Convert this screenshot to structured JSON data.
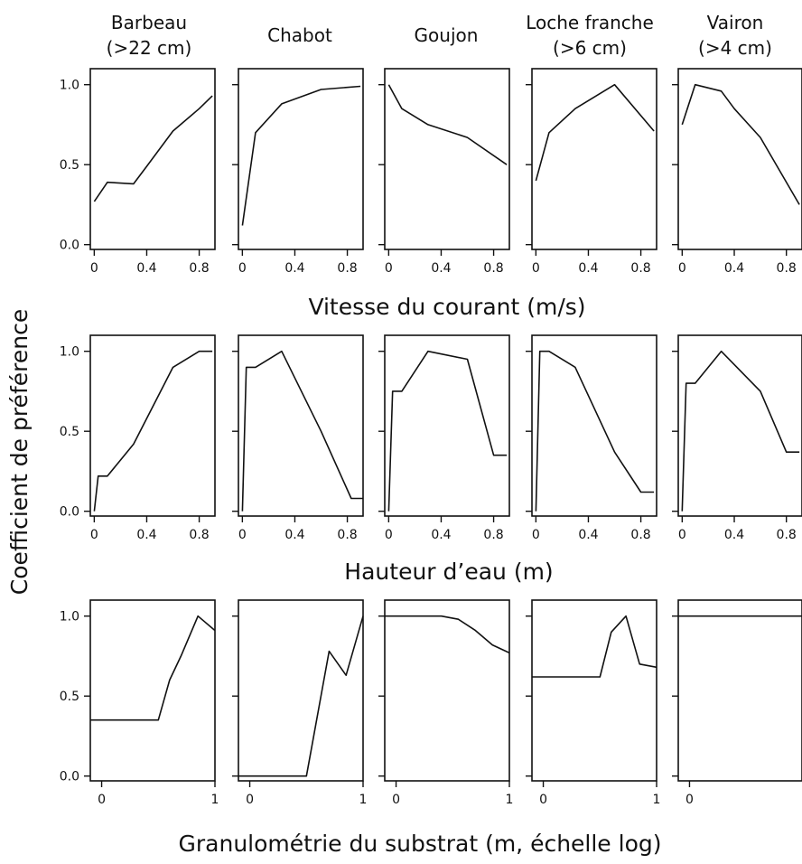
{
  "species": [
    {
      "line1": "Barbeau",
      "line2": "(>22 cm)"
    },
    {
      "line1": "Chabot",
      "line2": ""
    },
    {
      "line1": "Goujon",
      "line2": ""
    },
    {
      "line1": "Loche franche",
      "line2": "(>6 cm)"
    },
    {
      "line1": "Vairon",
      "line2": "(>4 cm)"
    }
  ],
  "ylabel": "Coefficient de préférence",
  "rows": [
    {
      "xlabel": "Vitesse du courant (m/s)",
      "xticks": [
        "0",
        "0.4",
        "0.8"
      ],
      "yticks": [
        "0.0",
        "0.5",
        "1.0"
      ]
    },
    {
      "xlabel": "Hauteur d’eau (m)",
      "xticks": [
        "0",
        "0.4",
        "0.8"
      ],
      "yticks": [
        "0.0",
        "0.5",
        "1.0"
      ]
    },
    {
      "xlabel": "Granulométrie du substrat (m, échelle log)",
      "xticks": [
        "0",
        "1"
      ],
      "yticks": [
        "0.0",
        "0.5",
        "1.0"
      ]
    }
  ],
  "chart_data": [
    {
      "type": "line",
      "panel": "Vitesse du courant / Barbeau (>22 cm)",
      "xlim": [
        -0.03,
        0.92
      ],
      "ylim": [
        -0.03,
        1.1
      ],
      "x": [
        0,
        0.1,
        0.3,
        0.4,
        0.6,
        0.8,
        0.9
      ],
      "y": [
        0.27,
        0.39,
        0.38,
        0.49,
        0.71,
        0.85,
        0.93
      ]
    },
    {
      "type": "line",
      "panel": "Vitesse du courant / Chabot",
      "xlim": [
        -0.03,
        0.92
      ],
      "ylim": [
        -0.03,
        1.1
      ],
      "x": [
        0,
        0.1,
        0.3,
        0.6,
        0.9
      ],
      "y": [
        0.12,
        0.7,
        0.88,
        0.97,
        0.99
      ]
    },
    {
      "type": "line",
      "panel": "Vitesse du courant / Goujon",
      "xlim": [
        -0.03,
        0.92
      ],
      "ylim": [
        -0.03,
        1.1
      ],
      "x": [
        0,
        0.1,
        0.3,
        0.6,
        0.9
      ],
      "y": [
        1.0,
        0.85,
        0.75,
        0.67,
        0.5
      ]
    },
    {
      "type": "line",
      "panel": "Vitesse du courant / Loche franche (>6 cm)",
      "xlim": [
        -0.03,
        0.92
      ],
      "ylim": [
        -0.03,
        1.1
      ],
      "x": [
        0,
        0.1,
        0.3,
        0.6,
        0.9
      ],
      "y": [
        0.4,
        0.7,
        0.85,
        1.0,
        0.71
      ]
    },
    {
      "type": "line",
      "panel": "Vitesse du courant / Vairon (>4 cm)",
      "xlim": [
        -0.03,
        0.92
      ],
      "ylim": [
        -0.03,
        1.1
      ],
      "x": [
        0,
        0.1,
        0.3,
        0.4,
        0.6,
        0.9
      ],
      "y": [
        0.75,
        1.0,
        0.96,
        0.85,
        0.67,
        0.25
      ]
    },
    {
      "type": "line",
      "panel": "Hauteur d’eau / Barbeau (>22 cm)",
      "xlim": [
        -0.03,
        0.92
      ],
      "ylim": [
        -0.03,
        1.1
      ],
      "x": [
        0,
        0.03,
        0.1,
        0.3,
        0.6,
        0.8,
        0.9
      ],
      "y": [
        0.0,
        0.22,
        0.22,
        0.42,
        0.9,
        1.0,
        1.0
      ]
    },
    {
      "type": "line",
      "panel": "Hauteur d’eau / Chabot",
      "xlim": [
        -0.03,
        0.92
      ],
      "ylim": [
        -0.03,
        1.1
      ],
      "x": [
        0,
        0.03,
        0.1,
        0.3,
        0.6,
        0.83,
        0.92
      ],
      "y": [
        0.0,
        0.9,
        0.9,
        1.0,
        0.5,
        0.08,
        0.08
      ]
    },
    {
      "type": "line",
      "panel": "Hauteur d’eau / Goujon",
      "xlim": [
        -0.03,
        0.92
      ],
      "ylim": [
        -0.03,
        1.1
      ],
      "x": [
        0,
        0.03,
        0.1,
        0.3,
        0.6,
        0.8,
        0.9
      ],
      "y": [
        0.0,
        0.75,
        0.75,
        1.0,
        0.95,
        0.35,
        0.35
      ]
    },
    {
      "type": "line",
      "panel": "Hauteur d’eau / Loche franche (>6 cm)",
      "xlim": [
        -0.03,
        0.92
      ],
      "ylim": [
        -0.03,
        1.1
      ],
      "x": [
        0,
        0.03,
        0.1,
        0.3,
        0.6,
        0.8,
        0.9
      ],
      "y": [
        0.0,
        1.0,
        1.0,
        0.9,
        0.37,
        0.12,
        0.12
      ]
    },
    {
      "type": "line",
      "panel": "Hauteur d’eau / Vairon (>4 cm)",
      "xlim": [
        -0.03,
        0.92
      ],
      "ylim": [
        -0.03,
        1.1
      ],
      "x": [
        0,
        0.03,
        0.1,
        0.3,
        0.6,
        0.8,
        0.9
      ],
      "y": [
        0.0,
        0.8,
        0.8,
        1.0,
        0.75,
        0.37,
        0.37
      ]
    },
    {
      "type": "line",
      "panel": "Granulométrie du substrat / Barbeau (>22 cm)",
      "xlim": [
        -0.1,
        1.0
      ],
      "ylim": [
        -0.03,
        1.1
      ],
      "x": [
        -0.1,
        0.5,
        0.6,
        0.7,
        0.85,
        1.0
      ],
      "y": [
        0.35,
        0.35,
        0.6,
        0.75,
        1.0,
        0.91
      ]
    },
    {
      "type": "line",
      "panel": "Granulométrie du substrat / Chabot",
      "xlim": [
        -0.1,
        1.0
      ],
      "ylim": [
        -0.03,
        1.1
      ],
      "x": [
        -0.1,
        0.5,
        0.7,
        0.85,
        1.0
      ],
      "y": [
        0.0,
        0.0,
        0.78,
        0.63,
        1.0
      ]
    },
    {
      "type": "line",
      "panel": "Granulométrie du substrat / Goujon",
      "xlim": [
        -0.1,
        1.0
      ],
      "ylim": [
        -0.03,
        1.1
      ],
      "x": [
        -0.1,
        0.4,
        0.55,
        0.7,
        0.85,
        1.0
      ],
      "y": [
        1.0,
        1.0,
        0.98,
        0.91,
        0.82,
        0.77
      ]
    },
    {
      "type": "line",
      "panel": "Granulométrie du substrat / Loche franche (>6 cm)",
      "xlim": [
        -0.1,
        1.0
      ],
      "ylim": [
        -0.03,
        1.1
      ],
      "x": [
        -0.1,
        0.5,
        0.6,
        0.73,
        0.85,
        1.0
      ],
      "y": [
        0.62,
        0.62,
        0.9,
        1.0,
        0.7,
        0.68
      ]
    },
    {
      "type": "line",
      "panel": "Granulométrie du substrat / Vairon (>4 cm)",
      "xlim": [
        -0.1,
        1.0
      ],
      "ylim": [
        -0.03,
        1.1
      ],
      "x": [
        -0.1,
        1.0
      ],
      "y": [
        1.0,
        1.0
      ]
    }
  ]
}
